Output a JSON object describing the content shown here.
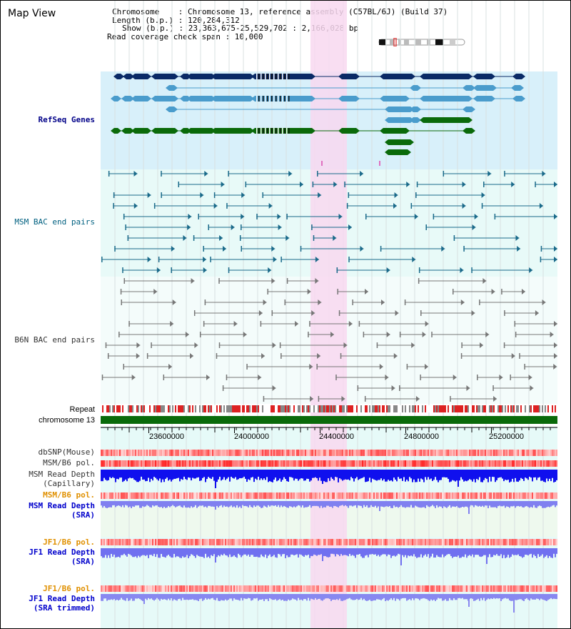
{
  "title": "Map View",
  "info": {
    "chromosome": "Chromosome    : Chromosome 13, reference assembly (C57BL/6J) (Build 37)",
    "length": "Length (b.p.) : 120,284,312",
    "show": "Show (b.p.) : 23,363,675-25,529,702 : 2,166,028 bp",
    "coverage": "Read coverage check span : 10,000"
  },
  "tracks": {
    "refseq": "RefSeq Genes",
    "msm_bac": "MSM BAC end pairs",
    "b6n_bac": "B6N BAC end pairs",
    "repeat": "Repeat",
    "chrom": "chromosome 13",
    "dbsnp": "dbSNP(Mouse)",
    "msm_pol": "MSM/B6 pol.",
    "msm_cap_1": "MSM Read Depth",
    "msm_cap_2": "(Capillary)",
    "msm_pol2": "MSM/B6 pol.",
    "msm_sra_1": "MSM Read Depth",
    "msm_sra_2": "(SRA)",
    "jf1_pol": "JF1/B6 pol.",
    "jf1_sra_1": "JF1 Read Depth",
    "jf1_sra_2": "(SRA)",
    "jf1_pol2": "JF1/B6 pol.",
    "jf1_tr_1": "JF1 Read Depth",
    "jf1_tr_2": "(SRA trimmed)"
  },
  "axis": {
    "ticks": [
      "23600000",
      "24000000",
      "24400000",
      "24800000",
      "25200000"
    ]
  },
  "colors": {
    "refseq_bg": "#d8f0fa",
    "bac_bg": "#e8faf8",
    "highlight": "#f8d8f0",
    "navy_gene": "#0a2a66",
    "light_gene": "#4a9ccc",
    "green_gene": "#0a6a0a",
    "chrom": "#0a6a0a"
  }
}
